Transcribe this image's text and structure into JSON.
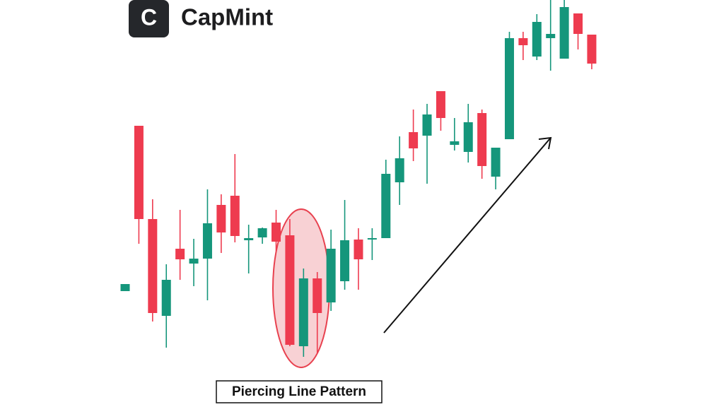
{
  "chart_data": {
    "type": "candlestick",
    "logo_icon": "C",
    "logo_text": "CapMint",
    "annotation": "Piercing Line Pattern",
    "up_color": "#15967b",
    "down_color": "#ee3b4f",
    "ylim": [
      0,
      576
    ],
    "open": [
      164,
      398,
      266,
      129,
      224,
      203,
      210,
      286,
      299,
      236,
      240,
      261,
      243,
      86,
      182,
      148,
      178,
      237,
      237,
      239,
      318,
      389,
      384,
      447,
      371,
      361,
      416,
      326,
      379,
      522,
      496,
      522,
      493,
      557,
      527
    ],
    "high": [
      174,
      398,
      294,
      202,
      279,
      238,
      308,
      301,
      358,
      258,
      254,
      279,
      266,
      196,
      191,
      251,
      293,
      253,
      253,
      350,
      383,
      421,
      429,
      447,
      409,
      429,
      421,
      367,
      531,
      531,
      556,
      576,
      576,
      557,
      527
    ],
    "low": [
      164,
      231,
      121,
      84,
      180,
      171,
      151,
      218,
      233,
      189,
      231,
      221,
      86,
      71,
      76,
      136,
      166,
      166,
      208,
      239,
      286,
      348,
      316,
      391,
      363,
      346,
      323,
      308,
      379,
      491,
      491,
      476,
      493,
      506,
      478
    ],
    "close": [
      174,
      266,
      133,
      180,
      209,
      210,
      260,
      247,
      242,
      239,
      253,
      234,
      88,
      182,
      133,
      224,
      236,
      209,
      239,
      330,
      352,
      366,
      414,
      409,
      376,
      403,
      341,
      367,
      522,
      512,
      545,
      528,
      566,
      528,
      486
    ]
  }
}
